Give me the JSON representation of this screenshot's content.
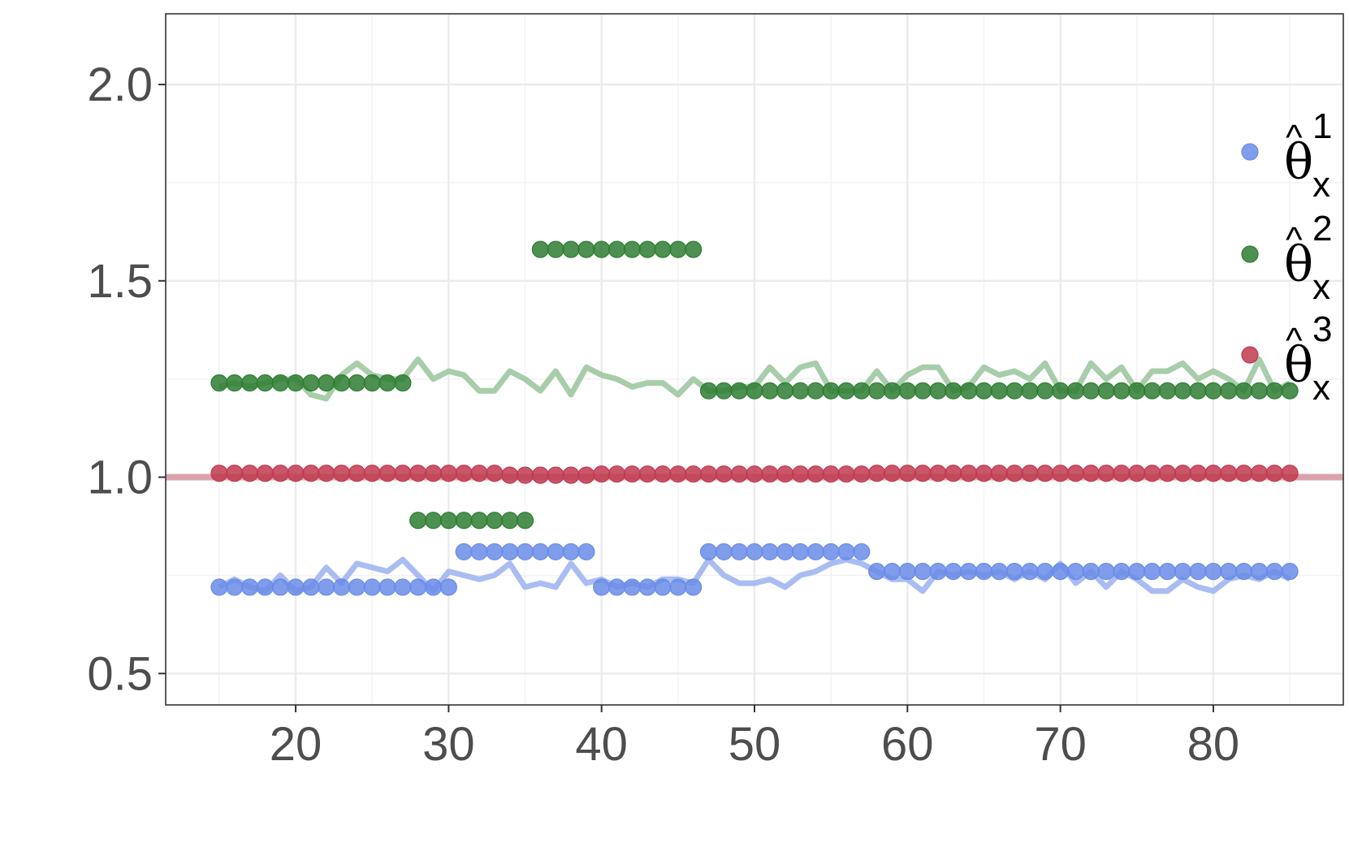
{
  "chart_data": {
    "type": "scatter",
    "title": "",
    "xlabel": "",
    "ylabel": "",
    "xlim": [
      11.5,
      88.5
    ],
    "ylim": [
      0.42,
      2.18
    ],
    "x_ticks": [
      20,
      30,
      40,
      50,
      60,
      70,
      80
    ],
    "y_ticks": [
      0.5,
      1.0,
      1.5,
      2.0
    ],
    "x_tick_labels": [
      "20",
      "30",
      "40",
      "50",
      "60",
      "70",
      "80"
    ],
    "y_tick_labels": [
      "0.5",
      "1.0",
      "1.5",
      "2.0"
    ],
    "grid": true,
    "legend_position": "right",
    "reference_line": {
      "y": 1.0,
      "color": "#d69aa5"
    },
    "legend": [
      {
        "symbol": "θ",
        "hat": "^",
        "superscript": "1",
        "subscript": "x",
        "color": "#6a8ce8"
      },
      {
        "symbol": "θ",
        "hat": "^",
        "superscript": "2",
        "subscript": "x",
        "color": "#2e7d32"
      },
      {
        "symbol": "θ",
        "hat": "^",
        "superscript": "3",
        "subscript": "x",
        "color": "#c0394f"
      }
    ],
    "lines": [
      {
        "color": "#9bb2f0",
        "x": [
          15,
          16,
          17,
          18,
          19,
          20,
          21,
          22,
          23,
          24,
          25,
          26,
          27,
          28,
          29,
          30,
          31,
          32,
          33,
          34,
          35,
          36,
          37,
          38,
          39,
          40,
          41,
          42,
          43,
          44,
          45,
          46,
          47,
          48,
          49,
          50,
          51,
          52,
          53,
          54,
          55,
          56,
          57,
          58,
          59,
          60,
          61,
          62,
          63,
          64,
          65,
          66,
          67,
          68,
          69,
          70,
          71,
          72,
          73,
          74,
          75,
          76,
          77,
          78,
          79,
          80,
          81,
          82,
          83,
          84,
          85
        ],
        "y": [
          0.72,
          0.74,
          0.72,
          0.71,
          0.75,
          0.71,
          0.72,
          0.77,
          0.73,
          0.78,
          0.77,
          0.76,
          0.79,
          0.75,
          0.71,
          0.76,
          0.75,
          0.74,
          0.75,
          0.78,
          0.72,
          0.73,
          0.72,
          0.78,
          0.73,
          0.74,
          0.72,
          0.73,
          0.72,
          0.74,
          0.74,
          0.73,
          0.79,
          0.75,
          0.73,
          0.73,
          0.74,
          0.72,
          0.75,
          0.76,
          0.78,
          0.79,
          0.78,
          0.76,
          0.74,
          0.74,
          0.71,
          0.76,
          0.75,
          0.76,
          0.75,
          0.76,
          0.74,
          0.76,
          0.74,
          0.78,
          0.73,
          0.76,
          0.72,
          0.76,
          0.74,
          0.71,
          0.71,
          0.74,
          0.72,
          0.71,
          0.74,
          0.75,
          0.74,
          0.76,
          0.74
        ]
      },
      {
        "color": "#99c49b",
        "x": [
          15,
          16,
          17,
          18,
          19,
          20,
          21,
          22,
          23,
          24,
          25,
          26,
          27,
          28,
          29,
          30,
          31,
          32,
          33,
          34,
          35,
          36,
          37,
          38,
          39,
          40,
          41,
          42,
          43,
          44,
          45,
          46,
          47,
          48,
          49,
          50,
          51,
          52,
          53,
          54,
          55,
          56,
          57,
          58,
          59,
          60,
          61,
          62,
          63,
          64,
          65,
          66,
          67,
          68,
          69,
          70,
          71,
          72,
          73,
          74,
          75,
          76,
          77,
          78,
          79,
          80,
          81,
          82,
          83,
          84,
          85
        ],
        "y": [
          1.23,
          1.24,
          1.23,
          1.24,
          1.25,
          1.25,
          1.21,
          1.2,
          1.26,
          1.29,
          1.26,
          1.25,
          1.25,
          1.3,
          1.25,
          1.27,
          1.26,
          1.22,
          1.22,
          1.27,
          1.25,
          1.22,
          1.27,
          1.21,
          1.28,
          1.26,
          1.25,
          1.23,
          1.24,
          1.24,
          1.21,
          1.25,
          1.22,
          1.22,
          1.23,
          1.23,
          1.28,
          1.24,
          1.28,
          1.29,
          1.22,
          1.22,
          1.22,
          1.27,
          1.22,
          1.26,
          1.28,
          1.28,
          1.22,
          1.23,
          1.28,
          1.26,
          1.27,
          1.25,
          1.29,
          1.22,
          1.22,
          1.29,
          1.25,
          1.28,
          1.22,
          1.27,
          1.27,
          1.29,
          1.25,
          1.27,
          1.25,
          1.22,
          1.3,
          1.22,
          1.24
        ]
      }
    ],
    "series": [
      {
        "name": "θ^1_x",
        "color": "#6a8ce8",
        "x": [
          15,
          16,
          17,
          18,
          19,
          20,
          21,
          22,
          23,
          24,
          25,
          26,
          27,
          28,
          29,
          30,
          31,
          32,
          33,
          34,
          35,
          36,
          37,
          38,
          39,
          40,
          41,
          42,
          43,
          44,
          45,
          46,
          47,
          48,
          49,
          50,
          51,
          52,
          53,
          54,
          55,
          56,
          57,
          58,
          59,
          60,
          61,
          62,
          63,
          64,
          65,
          66,
          67,
          68,
          69,
          70,
          71,
          72,
          73,
          74,
          75,
          76,
          77,
          78,
          79,
          80,
          81,
          82,
          83,
          84,
          85
        ],
        "y": [
          0.72,
          0.72,
          0.72,
          0.72,
          0.72,
          0.72,
          0.72,
          0.72,
          0.72,
          0.72,
          0.72,
          0.72,
          0.72,
          0.72,
          0.72,
          0.72,
          0.81,
          0.81,
          0.81,
          0.81,
          0.81,
          0.81,
          0.81,
          0.81,
          0.81,
          0.72,
          0.72,
          0.72,
          0.72,
          0.72,
          0.72,
          0.72,
          0.81,
          0.81,
          0.81,
          0.81,
          0.81,
          0.81,
          0.81,
          0.81,
          0.81,
          0.81,
          0.81,
          0.76,
          0.76,
          0.76,
          0.76,
          0.76,
          0.76,
          0.76,
          0.76,
          0.76,
          0.76,
          0.76,
          0.76,
          0.76,
          0.76,
          0.76,
          0.76,
          0.76,
          0.76,
          0.76,
          0.76,
          0.76,
          0.76,
          0.76,
          0.76,
          0.76,
          0.76,
          0.76,
          0.76
        ]
      },
      {
        "name": "θ^2_x",
        "color": "#2e7d32",
        "x": [
          15,
          16,
          17,
          18,
          19,
          20,
          21,
          22,
          23,
          24,
          25,
          26,
          27,
          28,
          29,
          30,
          31,
          32,
          33,
          34,
          35,
          36,
          37,
          38,
          39,
          40,
          41,
          42,
          43,
          44,
          45,
          46,
          47,
          48,
          49,
          50,
          51,
          52,
          53,
          54,
          55,
          56,
          57,
          58,
          59,
          60,
          61,
          62,
          63,
          64,
          65,
          66,
          67,
          68,
          69,
          70,
          71,
          72,
          73,
          74,
          75,
          76,
          77,
          78,
          79,
          80,
          81,
          82,
          83,
          84,
          85
        ],
        "y": [
          1.24,
          1.24,
          1.24,
          1.24,
          1.24,
          1.24,
          1.24,
          1.24,
          1.24,
          1.24,
          1.24,
          1.24,
          1.24,
          0.89,
          0.89,
          0.89,
          0.89,
          0.89,
          0.89,
          0.89,
          0.89,
          1.58,
          1.58,
          1.58,
          1.58,
          1.58,
          1.58,
          1.58,
          1.58,
          1.58,
          1.58,
          1.58,
          1.22,
          1.22,
          1.22,
          1.22,
          1.22,
          1.22,
          1.22,
          1.22,
          1.22,
          1.22,
          1.22,
          1.22,
          1.22,
          1.22,
          1.22,
          1.22,
          1.22,
          1.22,
          1.22,
          1.22,
          1.22,
          1.22,
          1.22,
          1.22,
          1.22,
          1.22,
          1.22,
          1.22,
          1.22,
          1.22,
          1.22,
          1.22,
          1.22,
          1.22,
          1.22,
          1.22,
          1.22,
          1.22,
          1.22
        ]
      },
      {
        "name": "θ^3_x",
        "color": "#c0394f",
        "x": [
          15,
          16,
          17,
          18,
          19,
          20,
          21,
          22,
          23,
          24,
          25,
          26,
          27,
          28,
          29,
          30,
          31,
          32,
          33,
          34,
          35,
          36,
          37,
          38,
          39,
          40,
          41,
          42,
          43,
          44,
          45,
          46,
          47,
          48,
          49,
          50,
          51,
          52,
          53,
          54,
          55,
          56,
          57,
          58,
          59,
          60,
          61,
          62,
          63,
          64,
          65,
          66,
          67,
          68,
          69,
          70,
          71,
          72,
          73,
          74,
          75,
          76,
          77,
          78,
          79,
          80,
          81,
          82,
          83,
          84,
          85
        ],
        "y": [
          1.01,
          1.01,
          1.01,
          1.01,
          1.01,
          1.01,
          1.01,
          1.01,
          1.01,
          1.01,
          1.01,
          1.01,
          1.01,
          1.01,
          1.01,
          1.01,
          1.01,
          1.01,
          1.01,
          1.005,
          1.005,
          1.005,
          1.005,
          1.005,
          1.005,
          1.008,
          1.008,
          1.008,
          1.008,
          1.008,
          1.008,
          1.008,
          1.008,
          1.008,
          1.008,
          1.008,
          1.008,
          1.008,
          1.008,
          1.008,
          1.008,
          1.008,
          1.008,
          1.01,
          1.01,
          1.01,
          1.01,
          1.01,
          1.01,
          1.01,
          1.01,
          1.01,
          1.01,
          1.01,
          1.01,
          1.01,
          1.01,
          1.01,
          1.01,
          1.01,
          1.01,
          1.01,
          1.01,
          1.01,
          1.01,
          1.01,
          1.01,
          1.01,
          1.01,
          1.01,
          1.01
        ]
      }
    ]
  }
}
